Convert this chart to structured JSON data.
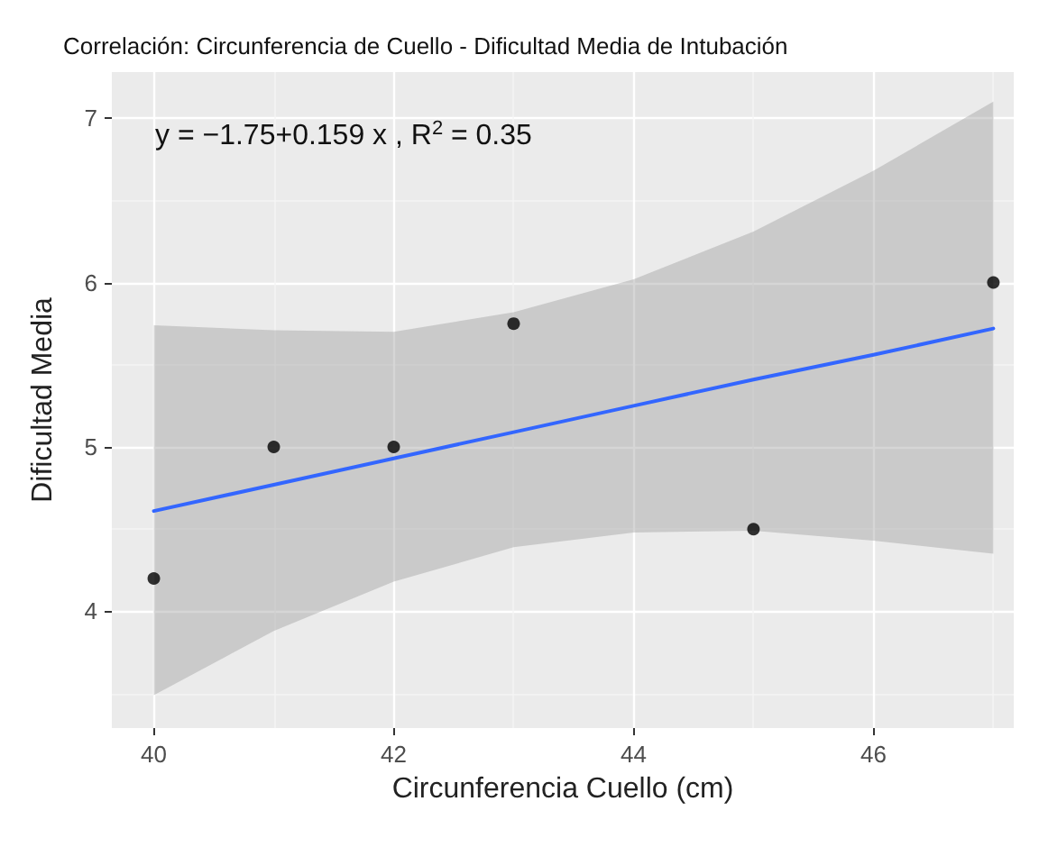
{
  "chart_data": {
    "type": "scatter",
    "title": "Correlación: Circunferencia de Cuello - Dificultad Media de Intubación",
    "xlabel": "Circunferencia Cuello (cm)",
    "ylabel": "Dificultad Media",
    "annotations": [
      "y = −1.75+0.159 x , R$^{2}$ = 0.35"
    ],
    "xlim": [
      39.65,
      47.17
    ],
    "ylim": [
      3.29,
      7.28
    ],
    "xticks": [
      40,
      42,
      44,
      46
    ],
    "yticks": [
      4,
      5,
      6,
      7
    ],
    "grid": true,
    "marker": "circle",
    "series": [
      {
        "color": "#000000",
        "x": [
          40,
          41,
          42,
          43,
          45,
          47
        ],
        "values": [
          4.2,
          5,
          5,
          5.75,
          4.5,
          6
        ]
      },
      {
        "type": "line",
        "color": "#3366ff",
        "x": [
          40,
          41,
          42,
          43,
          44,
          45,
          46,
          47
        ],
        "values": [
          4.61,
          4.77,
          4.93,
          5.09,
          5.25,
          5.41,
          5.56,
          5.72
        ],
        "lower": [
          3.49,
          3.88,
          4.18,
          4.39,
          4.48,
          4.49,
          4.43,
          4.35
        ],
        "upper": [
          5.74,
          5.71,
          5.7,
          5.82,
          6.02,
          6.31,
          6.68,
          7.1
        ],
        "marker": "none"
      }
    ]
  }
}
